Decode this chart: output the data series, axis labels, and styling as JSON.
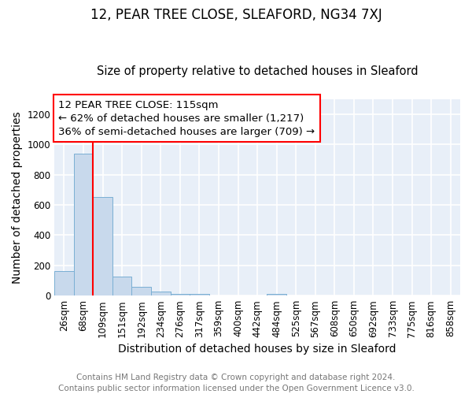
{
  "title": "12, PEAR TREE CLOSE, SLEAFORD, NG34 7XJ",
  "subtitle": "Size of property relative to detached houses in Sleaford",
  "xlabel": "Distribution of detached houses by size in Sleaford",
  "ylabel": "Number of detached properties",
  "bar_color": "#c8d9ec",
  "bar_edge_color": "#7aafd4",
  "bg_color": "#e8eff8",
  "grid_color": "#ffffff",
  "fig_bg_color": "#ffffff",
  "categories": [
    "26sqm",
    "68sqm",
    "109sqm",
    "151sqm",
    "192sqm",
    "234sqm",
    "276sqm",
    "317sqm",
    "359sqm",
    "400sqm",
    "442sqm",
    "484sqm",
    "525sqm",
    "567sqm",
    "608sqm",
    "650sqm",
    "692sqm",
    "733sqm",
    "775sqm",
    "816sqm",
    "858sqm"
  ],
  "values": [
    160,
    940,
    650,
    128,
    60,
    28,
    12,
    12,
    0,
    0,
    0,
    12,
    0,
    0,
    0,
    0,
    0,
    0,
    0,
    0,
    0
  ],
  "ylim": [
    0,
    1300
  ],
  "yticks": [
    0,
    200,
    400,
    600,
    800,
    1000,
    1200
  ],
  "property_line_x": 1.5,
  "annotation_text_line1": "12 PEAR TREE CLOSE: 115sqm",
  "annotation_text_line2": "← 62% of detached houses are smaller (1,217)",
  "annotation_text_line3": "36% of semi-detached houses are larger (709) →",
  "footnote": "Contains HM Land Registry data © Crown copyright and database right 2024.\nContains public sector information licensed under the Open Government Licence v3.0.",
  "title_fontsize": 12,
  "subtitle_fontsize": 10.5,
  "annot_fontsize": 9.5,
  "tick_fontsize": 8.5,
  "label_fontsize": 10,
  "footnote_fontsize": 7.5
}
